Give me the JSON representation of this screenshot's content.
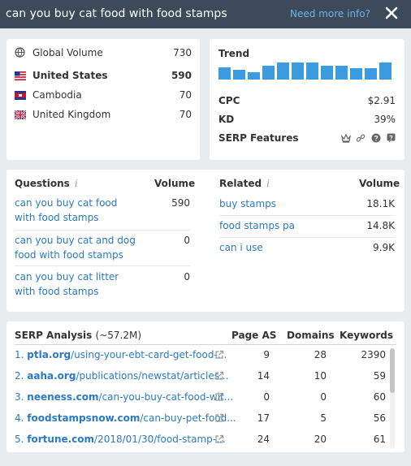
{
  "header": {
    "title": "can you buy cat food with food stamps",
    "more_info": "Need more info?",
    "close_icon": "close-icon"
  },
  "volume": {
    "rows": [
      {
        "label": "Global Volume",
        "value": "730",
        "icon": "globe-icon",
        "bold": false
      },
      {
        "label": "United States",
        "value": "590",
        "icon": "flag-us-icon",
        "bold": true
      },
      {
        "label": "Cambodia",
        "value": "70",
        "icon": "flag-kh-icon",
        "bold": false
      },
      {
        "label": "United Kingdom",
        "value": "70",
        "icon": "flag-uk-icon",
        "bold": false
      }
    ]
  },
  "trend": {
    "title": "Trend",
    "bars": [
      0.7,
      0.55,
      0.45,
      0.8,
      1.0,
      1.0,
      1.0,
      0.8,
      0.8,
      0.65,
      0.65,
      1.0
    ],
    "bar_color": "#3a9be0",
    "cpc_label": "CPC",
    "cpc_value": "$2.91",
    "kd_label": "KD",
    "kd_value": "39%",
    "serp_features_label": "SERP Features",
    "serp_feature_icons": [
      "crown-icon",
      "link-icon",
      "question-icon",
      "quote-icon"
    ]
  },
  "questions": {
    "title": "Questions",
    "volume_header": "Volume",
    "items": [
      {
        "text": "can you buy cat food with food stamps",
        "volume": "590"
      },
      {
        "text": "can you buy cat and dog food with food stamps",
        "volume": "0"
      },
      {
        "text": "can you buy cat litter with food stamps",
        "volume": "0"
      }
    ]
  },
  "related": {
    "title": "Related",
    "volume_header": "Volume",
    "items": [
      {
        "text": "buy stamps",
        "volume": "18.1K"
      },
      {
        "text": "food stamps pa",
        "volume": "14.8K"
      },
      {
        "text": "can i use",
        "volume": "9.9K"
      }
    ]
  },
  "serp": {
    "title": "SERP Analysis",
    "count": "(~57.2M)",
    "col_page_as": "Page AS",
    "col_domains": "Domains",
    "col_keywords": "Keywords",
    "rows": [
      {
        "rank": "1.",
        "domain": "ptla.org",
        "path": "/using-your-ebt-card-get-food-...",
        "page_as": "9",
        "domains": "28",
        "keywords": "2390"
      },
      {
        "rank": "2.",
        "domain": "aaha.org",
        "path": "/publications/newstat/articles...",
        "page_as": "14",
        "domains": "10",
        "keywords": "59"
      },
      {
        "rank": "3.",
        "domain": "neeness.com",
        "path": "/can-you-buy-cat-food-wit...",
        "page_as": "0",
        "domains": "0",
        "keywords": "60"
      },
      {
        "rank": "4.",
        "domain": "foodstampsnow.com",
        "path": "/can-buy-pet-food...",
        "page_as": "17",
        "domains": "5",
        "keywords": "56"
      },
      {
        "rank": "5.",
        "domain": "fortune.com",
        "path": "/2018/01/30/food-stamp-...",
        "page_as": "24",
        "domains": "20",
        "keywords": "61"
      }
    ]
  }
}
